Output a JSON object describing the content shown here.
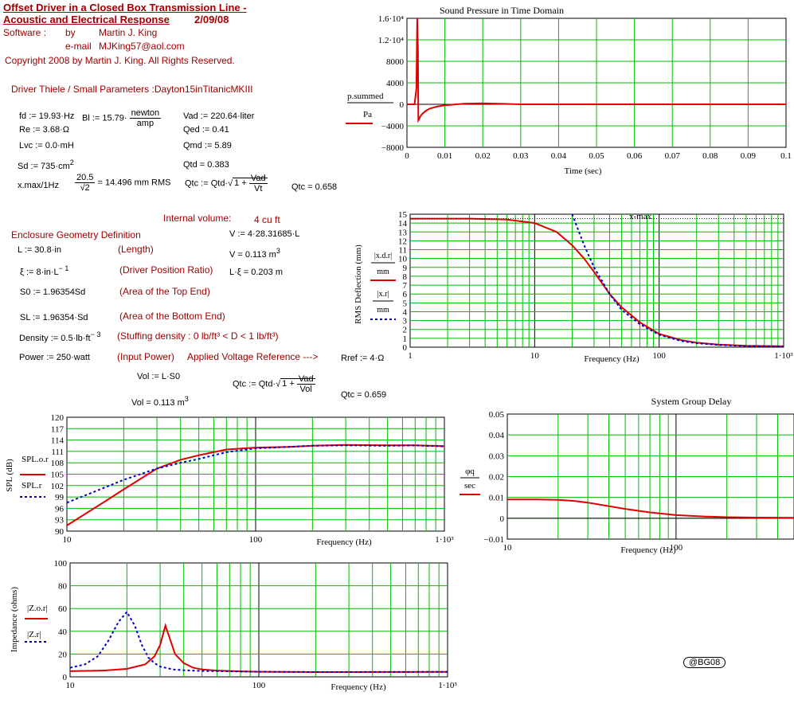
{
  "header": {
    "title_line1": "Offset Driver in a Closed Box Transmission Line -",
    "title_line2": "Acoustic and Electrical Response",
    "date": "2/09/08",
    "software_label": "Software :",
    "by_label": "by",
    "author": "Martin J. King",
    "email_label": "e-mail",
    "email": "MJKing57@aol.com",
    "copyright": "Copyright 2008 by Martin J. King. All Rights Reserved."
  },
  "driver": {
    "heading": "Driver Thiele / Small Parameters :Dayton15inTitanicMKIII",
    "fd": "fd := 19.93·Hz",
    "bl": "Bl := 15.79·",
    "bl_num": "newton",
    "bl_den": "amp",
    "vad": "Vad := 220.64·liter",
    "re": "Re := 3.68·Ω",
    "qed": "Qed := 0.41",
    "lvc": "Lvc := 0.0·mH",
    "qmd": "Qmd := 5.89",
    "sd": "Sd := 735·cm",
    "qtd": "Qtd = 0.383",
    "xmax_label": "x.max/1Hz",
    "xmax_num": "20.5",
    "xmax_den": "√2",
    "xmax_val": "= 14.496 mm RMS",
    "qtc_expr": "Qtc := Qtd·",
    "qtc_rad_a": "1 + ",
    "qtc_rad_num": "Vad",
    "qtc_rad_den": "Vt",
    "qtc_val": "Qtc = 0.658"
  },
  "enclosure": {
    "internal_volume": "Internal volume:",
    "internal_volume_val": "4 cu ft",
    "heading": "Enclosure Geometry Definition",
    "v_def": "V := 4·28.31685·L",
    "L": "L := 30.8·in",
    "L_note": "(Length)",
    "v_val": "V = 0.113 m",
    "xi": "ξ := 8·in·L",
    "xi_note": "(Driver Position Ratio)",
    "lxi": "L·ξ = 0.203 m",
    "s0": "S0 := 1.96354Sd",
    "s0_note": "(Area of the Top End)",
    "sl": "SL := 1.96354·Sd",
    "sl_note": "(Area of the Bottom End)",
    "density": "Density := 0.5·lb·ft",
    "density_note": "(Stuffing density : 0 lb/ft³ < D < 1 lb/ft³)",
    "power": "Power := 250·watt",
    "power_note": "(Input Power)",
    "voltage_ref": "Applied Voltage Reference --->",
    "rref": "Rref := 4·Ω",
    "vol_def": "Vol := L·S0",
    "vol_val": "Vol = 0.113 m",
    "qtc2_expr": "Qtc := Qtd·",
    "qtc2_rad_num": "Vad",
    "qtc2_rad_den": "Vol",
    "qtc2_val": "Qtc = 0.659"
  },
  "badge": "@BG08",
  "charts": {
    "time": {
      "title": "Sound Pressure in Time Domain",
      "xlabel": "Time (sec)",
      "ylabel_num": "p.summed",
      "ylabel_den": "Pa",
      "yticks": [
        "1.6·10⁴",
        "1.2·10⁴",
        "8000",
        "4000",
        "0",
        "−4000",
        "−8000"
      ],
      "xticks": [
        "0",
        "0.01",
        "0.02",
        "0.03",
        "0.04",
        "0.05",
        "0.06",
        "0.07",
        "0.08",
        "0.09",
        "0.1"
      ]
    },
    "deflection": {
      "ylabel": "RMS Deflection (mm)",
      "xlabel": "Frequency (Hz)",
      "legend1_num": "|x.d.r|",
      "legend1_den": "mm",
      "legend2_num": "|x.r|",
      "legend2_den": "mm",
      "xmax_label": "x-max",
      "yticks": [
        "15",
        "14",
        "13",
        "12",
        "11",
        "10",
        "9",
        "8",
        "7",
        "6",
        "5",
        "4",
        "3",
        "2",
        "1",
        "0"
      ],
      "xticks": [
        "1",
        "10",
        "100",
        "1·10³"
      ]
    },
    "spl": {
      "ylabel": "SPL (dB)",
      "xlabel": "Frequency (Hz)",
      "legend1": "SPL.o.r",
      "legend2": "SPL.r",
      "yticks": [
        "120",
        "117",
        "114",
        "111",
        "108",
        "105",
        "102",
        "99",
        "96",
        "93",
        "90"
      ],
      "xticks": [
        "10",
        "100",
        "1·10³"
      ]
    },
    "delay": {
      "title": "System Group Delay",
      "xlabel": "Frequency (Hz)",
      "legend_num": "φq",
      "legend_den": "sec",
      "yticks": [
        "0.05",
        "0.04",
        "0.03",
        "0.02",
        "0.01",
        "0",
        "−0.01"
      ],
      "xticks": [
        "10",
        "100"
      ]
    },
    "impedance": {
      "ylabel": "Impedance (ohms)",
      "xlabel": "Frequency (Hz)",
      "legend1": "|Z.o.r|",
      "legend2": "|Z.r|",
      "yticks": [
        "100",
        "80",
        "60",
        "40",
        "20",
        "0"
      ],
      "xticks": [
        "10",
        "100",
        "1·10³"
      ]
    }
  },
  "chart_data": [
    {
      "type": "line",
      "title": "Sound Pressure in Time Domain",
      "xlabel": "Time (sec)",
      "ylabel": "p.summed / Pa",
      "xlim": [
        0,
        0.1
      ],
      "ylim": [
        -8000,
        16000
      ],
      "series": [
        {
          "name": "p.summed",
          "color": "#e00000",
          "x": [
            0,
            0.002,
            0.0025,
            0.0027,
            0.0029,
            0.003,
            0.0032,
            0.0034,
            0.004,
            0.005,
            0.006,
            0.008,
            0.01,
            0.015,
            0.02,
            0.03,
            0.1
          ],
          "y": [
            0,
            0,
            3000,
            16000,
            10000,
            -3000,
            -2800,
            -2400,
            -1800,
            -1200,
            -800,
            -400,
            -200,
            100,
            200,
            0,
            0
          ]
        }
      ]
    },
    {
      "type": "line",
      "title": "",
      "xlabel": "Frequency (Hz)",
      "ylabel": "RMS Deflection (mm)",
      "xscale": "log",
      "xlim": [
        1,
        1000
      ],
      "ylim": [
        0,
        15
      ],
      "series": [
        {
          "name": "|x.d.r| / mm",
          "color": "#e00000",
          "x": [
            1,
            3,
            6,
            10,
            15,
            20,
            25,
            30,
            40,
            50,
            70,
            100,
            150,
            200,
            300,
            500,
            1000
          ],
          "y": [
            14.5,
            14.5,
            14.4,
            14.0,
            13.0,
            11.5,
            10.0,
            8.5,
            6.0,
            4.5,
            2.8,
            1.5,
            0.8,
            0.5,
            0.3,
            0.15,
            0.1
          ]
        },
        {
          "name": "|x.r| / mm",
          "color": "#0000cc",
          "x": [
            20,
            22,
            25,
            30,
            40,
            50,
            70,
            100,
            150,
            200,
            300,
            500,
            1000
          ],
          "y": [
            15,
            13.5,
            11.5,
            9.0,
            6.0,
            4.2,
            2.6,
            1.4,
            0.7,
            0.45,
            0.25,
            0.12,
            0.08
          ]
        }
      ]
    },
    {
      "type": "line",
      "title": "",
      "xlabel": "Frequency (Hz)",
      "ylabel": "SPL (dB)",
      "xscale": "log",
      "xlim": [
        10,
        1000
      ],
      "ylim": [
        90,
        120
      ],
      "series": [
        {
          "name": "SPL.o.r",
          "color": "#e00000",
          "x": [
            10,
            15,
            20,
            30,
            40,
            50,
            70,
            100,
            150,
            200,
            300,
            500,
            700,
            1000
          ],
          "y": [
            91.5,
            97,
            101,
            106.5,
            108.8,
            110,
            111.5,
            112,
            112.2,
            112.5,
            112.7,
            112.6,
            112.6,
            112.4
          ]
        },
        {
          "name": "SPL.r",
          "color": "#0000cc",
          "x": [
            10,
            15,
            20,
            30,
            40,
            50,
            70,
            100,
            150,
            200,
            300,
            500,
            700,
            1000
          ],
          "y": [
            97.5,
            101,
            103.5,
            106.5,
            108,
            109,
            110.8,
            111.8,
            112.2,
            112.5,
            112.6,
            112.5,
            112.6,
            112.3
          ]
        }
      ]
    },
    {
      "type": "line",
      "title": "System Group Delay",
      "xlabel": "Frequency (Hz)",
      "ylabel": "φq / sec",
      "xscale": "log",
      "xlim": [
        10,
        500
      ],
      "ylim": [
        -0.01,
        0.05
      ],
      "series": [
        {
          "name": "φq",
          "color": "#e00000",
          "x": [
            10,
            15,
            20,
            25,
            30,
            40,
            50,
            70,
            100,
            150,
            200,
            300,
            500
          ],
          "y": [
            0.009,
            0.009,
            0.0088,
            0.0083,
            0.0075,
            0.0058,
            0.0045,
            0.0028,
            0.0015,
            0.0008,
            0.0005,
            0.0003,
            0.0002
          ]
        }
      ]
    },
    {
      "type": "line",
      "title": "",
      "xlabel": "Frequency (Hz)",
      "ylabel": "Impedance (ohms)",
      "xscale": "log",
      "xlim": [
        10,
        1000
      ],
      "ylim": [
        0,
        100
      ],
      "series": [
        {
          "name": "|Z.o.r|",
          "color": "#e00000",
          "x": [
            10,
            15,
            20,
            25,
            28,
            30,
            32,
            34,
            36,
            40,
            45,
            50,
            60,
            80,
            100,
            200,
            500,
            1000
          ],
          "y": [
            5,
            5.5,
            7,
            11,
            18,
            28,
            45,
            32,
            20,
            12,
            8,
            6.5,
            5.5,
            4.8,
            4.5,
            4.2,
            4.3,
            4.4
          ]
        },
        {
          "name": "|Z.r|",
          "color": "#0000cc",
          "x": [
            10,
            12,
            14,
            16,
            18,
            20,
            22,
            24,
            26,
            28,
            30,
            35,
            40,
            50,
            70,
            100,
            200,
            500,
            1000
          ],
          "y": [
            8,
            11,
            18,
            32,
            48,
            57,
            45,
            28,
            17,
            12,
            9,
            6.5,
            5.8,
            5.2,
            4.8,
            4.5,
            4.2,
            4.3,
            4.4
          ]
        }
      ]
    }
  ]
}
